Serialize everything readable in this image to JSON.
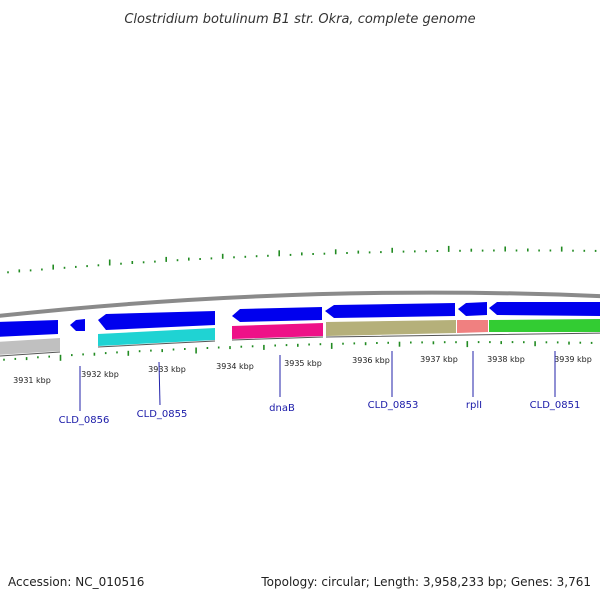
{
  "title": "Clostridium botulinum B1 str. Okra, complete genome",
  "footer": {
    "accession": "Accession: NC_010516",
    "topology": "Topology: circular; Length: 3,958,233 bp; Genes: 3,761"
  },
  "kbp_labels": [
    "3931 kbp",
    "3932 kbp",
    "3933 kbp",
    "3934 kbp",
    "3935 kbp",
    "3936 kbp",
    "3937 kbp",
    "3938 kbp",
    "3939 kbp"
  ],
  "gene_labels": [
    "CLD_0856",
    "CLD_0855",
    "dnaB",
    "CLD_0853",
    "rplI",
    "CLD_0851"
  ],
  "colors": {
    "backbone": "#8c8c8c",
    "cds_forward": "#0000ee",
    "cds_reverse_gray": "#c0c0c0",
    "cds_cyan": "#1fd3d3",
    "cds_magenta": "#ee1188",
    "cds_khaki": "#b5b07a",
    "cds_salmon": "#f08080",
    "cds_green": "#33cc33",
    "gc_skew": "#228b22"
  }
}
